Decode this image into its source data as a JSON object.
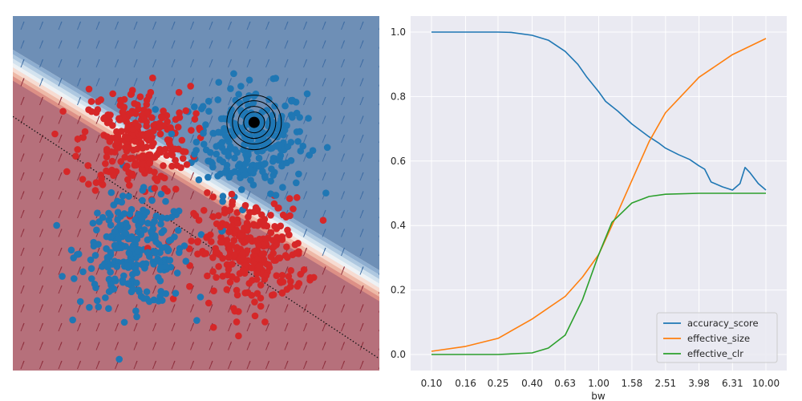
{
  "chart_data": [
    {
      "type": "scatter",
      "title": "",
      "xlabel": "",
      "ylabel": "",
      "xlim": [
        -3,
        3
      ],
      "ylim": [
        -3,
        3
      ],
      "grid": false,
      "axes_visible": false,
      "background": "decision-function contour (blue above boundary, red below) with small quiver arrows",
      "decision_boundary": {
        "line": [
          [
            -3,
            1.3
          ],
          [
            3,
            -2.8
          ]
        ],
        "style": "dotted black"
      },
      "series": [
        {
          "color": "#1f77b4",
          "clusters": [
            {
              "center": [
                0.9,
                0.9
              ],
              "spread": 0.45,
              "count": 280
            },
            {
              "center": [
                -1.0,
                -1.0
              ],
              "spread": 0.45,
              "count": 260
            }
          ]
        },
        {
          "color": "#d62728",
          "clusters": [
            {
              "center": [
                -1.0,
                0.9
              ],
              "spread": 0.45,
              "count": 260
            },
            {
              "center": [
                0.9,
                -1.0
              ],
              "spread": 0.45,
              "count": 280
            }
          ]
        }
      ],
      "highlight_point": {
        "x": 0.95,
        "y": 1.2,
        "rings": 4
      }
    },
    {
      "type": "line",
      "title": "",
      "xlabel": "bw",
      "ylabel": "",
      "xscale": "log",
      "xlim": [
        0.1,
        10
      ],
      "ylim": [
        0,
        1
      ],
      "grid": true,
      "legend_position": "bottom-right",
      "x_ticks": [
        "0.10",
        "0.16",
        "0.25",
        "0.40",
        "0.63",
        "1.00",
        "1.58",
        "2.51",
        "3.98",
        "6.31",
        "10.00"
      ],
      "y_ticks": [
        "0.0",
        "0.2",
        "0.4",
        "0.6",
        "0.8",
        "1.0"
      ],
      "series": [
        {
          "name": "accuracy_score",
          "color": "#1f77b4",
          "points": [
            [
              0.1,
              1.0
            ],
            [
              0.16,
              1.0
            ],
            [
              0.25,
              1.0
            ],
            [
              0.3,
              0.999
            ],
            [
              0.4,
              0.99
            ],
            [
              0.5,
              0.975
            ],
            [
              0.63,
              0.94
            ],
            [
              0.75,
              0.9
            ],
            [
              0.85,
              0.86
            ],
            [
              1.0,
              0.815
            ],
            [
              1.1,
              0.785
            ],
            [
              1.3,
              0.755
            ],
            [
              1.58,
              0.715
            ],
            [
              2.0,
              0.675
            ],
            [
              2.3,
              0.655
            ],
            [
              2.51,
              0.64
            ],
            [
              3.0,
              0.62
            ],
            [
              3.5,
              0.605
            ],
            [
              3.98,
              0.585
            ],
            [
              4.3,
              0.575
            ],
            [
              4.7,
              0.535
            ],
            [
              5.5,
              0.52
            ],
            [
              6.31,
              0.51
            ],
            [
              7.0,
              0.53
            ],
            [
              7.5,
              0.58
            ],
            [
              8.0,
              0.565
            ],
            [
              9.0,
              0.53
            ],
            [
              10.0,
              0.51
            ]
          ]
        },
        {
          "name": "effective_size",
          "color": "#ff7f0e",
          "points": [
            [
              0.1,
              0.01
            ],
            [
              0.16,
              0.025
            ],
            [
              0.25,
              0.05
            ],
            [
              0.4,
              0.11
            ],
            [
              0.63,
              0.18
            ],
            [
              0.8,
              0.24
            ],
            [
              1.0,
              0.31
            ],
            [
              1.2,
              0.4
            ],
            [
              1.58,
              0.54
            ],
            [
              2.0,
              0.66
            ],
            [
              2.51,
              0.75
            ],
            [
              3.98,
              0.86
            ],
            [
              6.31,
              0.93
            ],
            [
              10.0,
              0.98
            ]
          ]
        },
        {
          "name": "effective_clr",
          "color": "#2ca02c",
          "points": [
            [
              0.1,
              0.0
            ],
            [
              0.25,
              0.0
            ],
            [
              0.4,
              0.005
            ],
            [
              0.5,
              0.02
            ],
            [
              0.63,
              0.06
            ],
            [
              0.8,
              0.17
            ],
            [
              1.0,
              0.31
            ],
            [
              1.2,
              0.41
            ],
            [
              1.58,
              0.47
            ],
            [
              2.0,
              0.49
            ],
            [
              2.51,
              0.497
            ],
            [
              3.98,
              0.5
            ],
            [
              10.0,
              0.5
            ]
          ]
        }
      ]
    }
  ]
}
